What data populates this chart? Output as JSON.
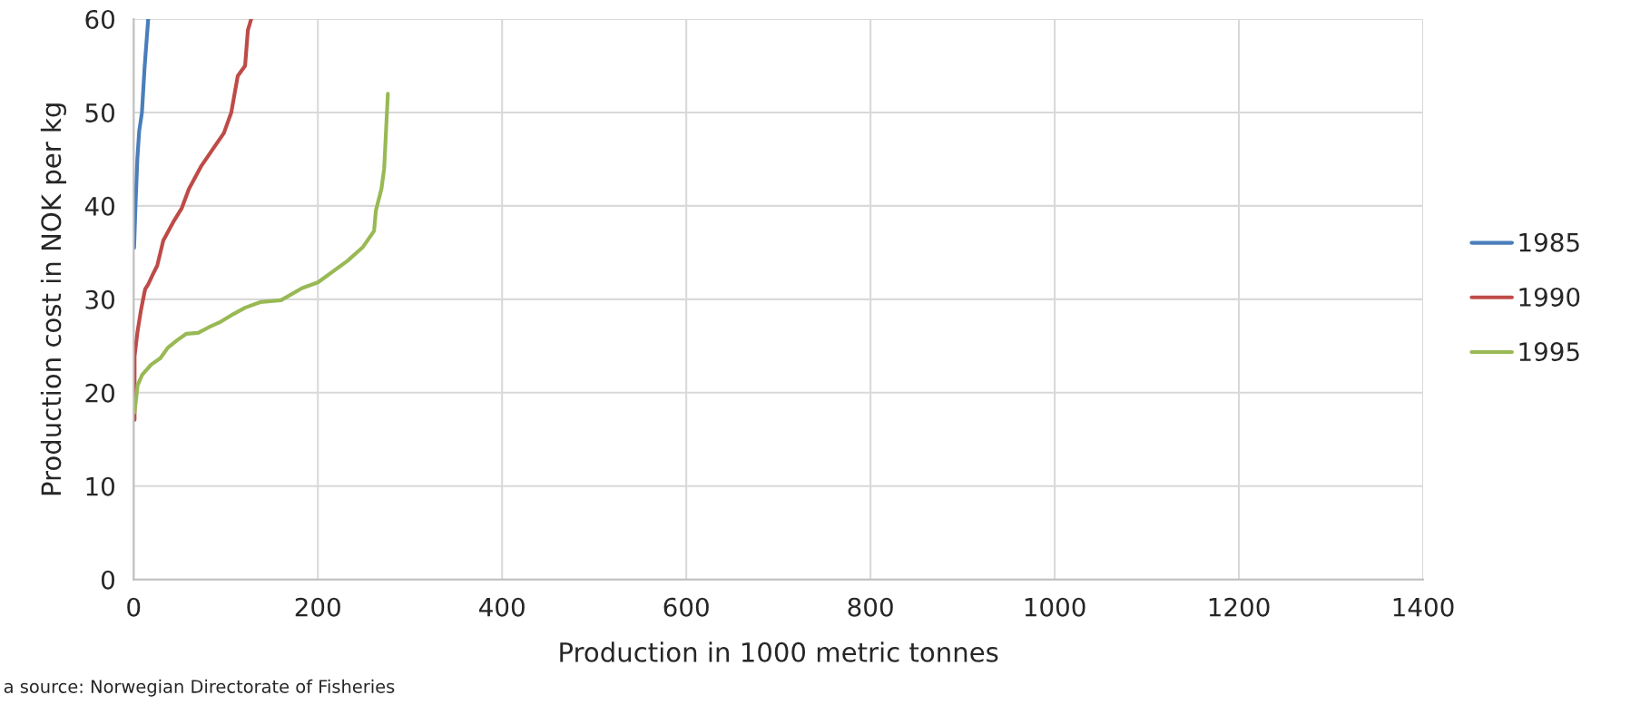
{
  "chart_data": {
    "type": "line",
    "xlabel": "Production in 1000 metric tonnes",
    "ylabel": "Production cost in NOK per kg",
    "annotations": [
      "a source: Norwegian Directorate of Fisheries"
    ],
    "xlim": [
      0,
      1400
    ],
    "xticks": [
      0,
      200,
      400,
      600,
      800,
      1000,
      1200,
      1400
    ],
    "ylim": [
      0,
      60
    ],
    "yticks": [
      0,
      10,
      20,
      30,
      40,
      50,
      60
    ],
    "grid": true,
    "legend": "right",
    "marker": "none",
    "line_style": "solid",
    "series": [
      {
        "name": "1985",
        "color": "#4a7ebb",
        "x": [
          0.5,
          2,
          4,
          6,
          9,
          12,
          15.8
        ],
        "values": [
          35.5,
          40,
          45,
          48,
          50,
          55,
          60
        ]
      },
      {
        "name": "1990",
        "color": "#be4b48",
        "x": [
          1,
          1,
          4,
          7.7,
          12.5,
          15.8,
          22,
          25.6,
          32.2,
          43.8,
          52,
          60,
          73,
          91,
          98,
          106,
          113,
          121,
          124,
          127.6
        ],
        "values": [
          17.1,
          23.9,
          26.4,
          28.7,
          31.1,
          31.6,
          32.9,
          33.6,
          36.3,
          38.4,
          39.7,
          41.8,
          44.2,
          46.8,
          47.8,
          50,
          53.9,
          55,
          58.8,
          60
        ]
      },
      {
        "name": "1995",
        "color": "#98b954",
        "x": [
          1,
          4.3,
          9.2,
          19,
          29,
          37,
          47,
          57,
          70,
          81.5,
          94.6,
          108,
          121,
          137.5,
          160,
          183,
          200,
          232,
          249,
          261,
          263,
          269,
          272,
          276
        ],
        "values": [
          17.9,
          20.8,
          21.9,
          23.0,
          23.7,
          24.8,
          25.6,
          26.3,
          26.4,
          27.0,
          27.6,
          28.4,
          29.1,
          29.7,
          29.9,
          31.2,
          31.8,
          34.1,
          35.6,
          37.3,
          39.5,
          41.8,
          44,
          52
        ]
      }
    ]
  }
}
